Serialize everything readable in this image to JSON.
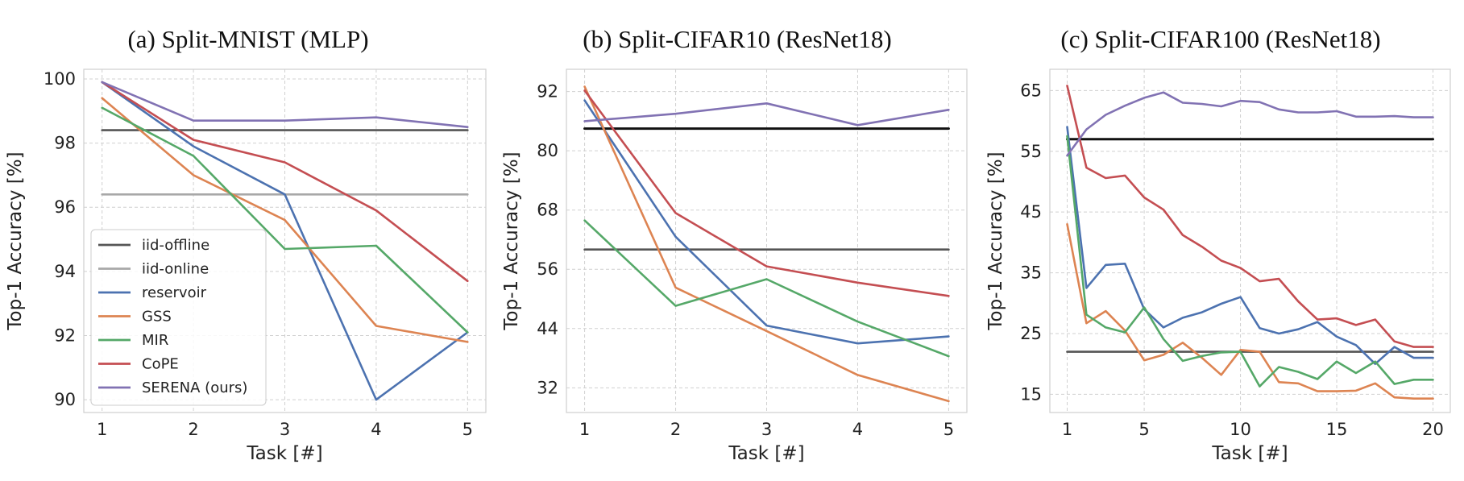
{
  "colors": {
    "iid-offline": "#555555",
    "iid-online": "#a8a8a8",
    "reservoir": "#4c72b0",
    "GSS": "#dd8452",
    "MIR": "#55a868",
    "CoPE": "#c44e52",
    "SERENA (ours)": "#8172b3",
    "black": "#111111"
  },
  "chart_data": [
    {
      "type": "line",
      "title": "(a) Split-MNIST (MLP)",
      "xlabel": "Task [#]",
      "ylabel": "Top-1 Accuracy [%]",
      "xlim": [
        0.8,
        5.2
      ],
      "ylim": [
        89.6,
        100.3
      ],
      "xticks": [
        1,
        2,
        3,
        4,
        5
      ],
      "yticks": [
        90,
        92,
        94,
        96,
        98,
        100
      ],
      "grid": true,
      "legend": "lower-left",
      "x": [
        1,
        2,
        3,
        4,
        5
      ],
      "series": [
        {
          "name": "iid-offline",
          "values": [
            98.4,
            98.4,
            98.4,
            98.4,
            98.4
          ]
        },
        {
          "name": "iid-online",
          "values": [
            96.4,
            96.4,
            96.4,
            96.4,
            96.4
          ]
        },
        {
          "name": "reservoir",
          "values": [
            99.9,
            97.9,
            96.4,
            90.0,
            92.1
          ]
        },
        {
          "name": "GSS",
          "values": [
            99.4,
            97.0,
            95.6,
            92.3,
            91.8
          ]
        },
        {
          "name": "MIR",
          "values": [
            99.1,
            97.6,
            94.7,
            94.8,
            92.1
          ]
        },
        {
          "name": "CoPE",
          "values": [
            99.9,
            98.1,
            97.4,
            95.9,
            93.7
          ]
        },
        {
          "name": "SERENA (ours)",
          "values": [
            99.9,
            98.7,
            98.7,
            98.8,
            98.5
          ]
        }
      ]
    },
    {
      "type": "line",
      "title": "(b) Split-CIFAR10 (ResNet18)",
      "xlabel": "Task [#]",
      "ylabel": "Top-1 Accuracy [%]",
      "xlim": [
        0.8,
        5.2
      ],
      "ylim": [
        27,
        96.5
      ],
      "xticks": [
        1,
        2,
        3,
        4,
        5
      ],
      "yticks": [
        32,
        44,
        56,
        68,
        80,
        92
      ],
      "grid": true,
      "x": [
        1,
        2,
        3,
        4,
        5
      ],
      "series": [
        {
          "name": "black",
          "values": [
            84.5,
            84.5,
            84.5,
            84.5,
            84.5
          ]
        },
        {
          "name": "iid-offline",
          "values": [
            60.0,
            60.0,
            60.0,
            60.0,
            60.0
          ]
        },
        {
          "name": "reservoir",
          "values": [
            90.2,
            62.6,
            44.6,
            41.0,
            42.4
          ]
        },
        {
          "name": "GSS",
          "values": [
            93.0,
            52.3,
            43.5,
            34.6,
            29.3
          ]
        },
        {
          "name": "MIR",
          "values": [
            65.9,
            48.6,
            54.0,
            45.4,
            38.4
          ]
        },
        {
          "name": "CoPE",
          "values": [
            92.2,
            67.4,
            56.6,
            53.3,
            50.6
          ]
        },
        {
          "name": "SERENA (ours)",
          "values": [
            86.0,
            87.5,
            89.6,
            85.2,
            88.3
          ]
        }
      ]
    },
    {
      "type": "line",
      "title": "(c) Split-CIFAR100 (ResNet18)",
      "xlabel": "Task [#]",
      "ylabel": "Top-1 Accuracy [%]",
      "xlim": [
        0.1,
        20.9
      ],
      "ylim": [
        12,
        68.5
      ],
      "xticks": [
        1,
        5,
        10,
        15,
        20
      ],
      "yticks": [
        15,
        25,
        35,
        45,
        55,
        65
      ],
      "grid": true,
      "x": [
        1,
        2,
        3,
        4,
        5,
        6,
        7,
        8,
        9,
        10,
        11,
        12,
        13,
        14,
        15,
        16,
        17,
        18,
        19,
        20
      ],
      "series": [
        {
          "name": "black",
          "values": [
            57.0,
            57.0,
            57.0,
            57.0,
            57.0,
            57.0,
            57.0,
            57.0,
            57.0,
            57.0,
            57.0,
            57.0,
            57.0,
            57.0,
            57.0,
            57.0,
            57.0,
            57.0,
            57.0,
            57.0
          ]
        },
        {
          "name": "iid-offline",
          "values": [
            22.0,
            22.0,
            22.0,
            22.0,
            22.0,
            22.0,
            22.0,
            22.0,
            22.0,
            22.0,
            22.0,
            22.0,
            22.0,
            22.0,
            22.0,
            22.0,
            22.0,
            22.0,
            22.0,
            22.0
          ]
        },
        {
          "name": "reservoir",
          "values": [
            59.0,
            32.5,
            36.3,
            36.5,
            29.0,
            26.0,
            27.6,
            28.5,
            29.9,
            31.0,
            25.9,
            25.0,
            25.7,
            26.9,
            24.5,
            23.1,
            20.0,
            22.8,
            21.0,
            21.0
          ]
        },
        {
          "name": "GSS",
          "values": [
            43.0,
            26.7,
            28.7,
            25.5,
            20.6,
            21.5,
            23.5,
            21.0,
            18.2,
            22.3,
            22.0,
            17.0,
            16.8,
            15.5,
            15.5,
            15.6,
            16.8,
            14.5,
            14.3,
            14.3
          ]
        },
        {
          "name": "MIR",
          "values": [
            57.5,
            28.1,
            26.0,
            25.2,
            29.3,
            24.1,
            20.5,
            21.3,
            21.9,
            22.0,
            16.3,
            19.5,
            18.7,
            17.5,
            20.4,
            18.5,
            20.4,
            16.7,
            17.4,
            17.4
          ]
        },
        {
          "name": "CoPE",
          "values": [
            65.8,
            52.3,
            50.6,
            51.0,
            47.4,
            45.4,
            41.2,
            39.3,
            37.0,
            35.8,
            33.6,
            34.0,
            30.3,
            27.3,
            27.5,
            26.4,
            27.3,
            23.7,
            22.8,
            22.8
          ]
        },
        {
          "name": "SERENA (ours)",
          "values": [
            54.3,
            58.6,
            61.0,
            62.5,
            63.8,
            64.7,
            63.0,
            62.8,
            62.4,
            63.3,
            63.1,
            61.9,
            61.4,
            61.4,
            61.6,
            60.7,
            60.7,
            60.8,
            60.6,
            60.6
          ]
        }
      ]
    }
  ],
  "legend": [
    "iid-offline",
    "iid-online",
    "reservoir",
    "GSS",
    "MIR",
    "CoPE",
    "SERENA (ours)"
  ]
}
